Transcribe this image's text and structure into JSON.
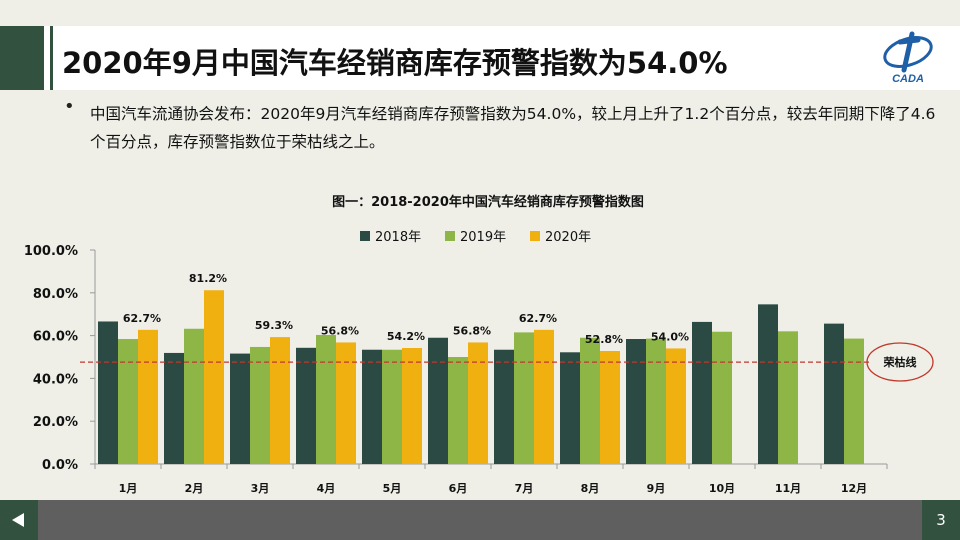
{
  "slide": {
    "title": "2020年9月中国汽车经销商库存预警指数为54.0%",
    "logo_text": "CADA",
    "bullet": "中国汽车流通协会发布：2020年9月汽车经销商库存预警指数为54.0%，较上月上升了1.2个百分点，较去年同期下降了4.6个百分点，库存预警指数位于荣枯线之上。",
    "page_number": "3"
  },
  "colors": {
    "accent": "#33513f",
    "series_2018": "#2b4a44",
    "series_2019": "#8db646",
    "series_2020": "#f0b010",
    "threshold_line": "#c0392b"
  },
  "chart_data": {
    "type": "bar",
    "title": "图一：2018-2020年中国汽车经销商库存预警指数图",
    "categories": [
      "1月",
      "2月",
      "3月",
      "4月",
      "5月",
      "6月",
      "7月",
      "8月",
      "9月",
      "10月",
      "11月",
      "12月"
    ],
    "series": [
      {
        "name": "2018年",
        "values": [
          66.6,
          51.9,
          51.6,
          54.3,
          53.4,
          59.0,
          53.4,
          52.2,
          58.4,
          66.4,
          74.6,
          65.6
        ]
      },
      {
        "name": "2019年",
        "values": [
          58.4,
          63.2,
          54.7,
          60.3,
          53.4,
          50.0,
          61.5,
          59.0,
          58.6,
          61.8,
          62.0,
          58.6
        ]
      },
      {
        "name": "2020年",
        "values": [
          62.7,
          81.2,
          59.3,
          56.8,
          54.2,
          56.8,
          62.7,
          52.8,
          54.0,
          null,
          null,
          null
        ]
      }
    ],
    "data_labels": {
      "series": "2020年",
      "labels": [
        "62.7%",
        "81.2%",
        "59.3%",
        "56.8%",
        "54.2%",
        "56.8%",
        "62.7%",
        "52.8%",
        "54.0%"
      ]
    },
    "yticks": [
      "0.0%",
      "20.0%",
      "40.0%",
      "60.0%",
      "80.0%",
      "100.0%"
    ],
    "ylim": [
      0,
      100
    ],
    "threshold": {
      "value": 47.6,
      "label": "荣枯线"
    },
    "legend_position": "top",
    "grid": false
  }
}
